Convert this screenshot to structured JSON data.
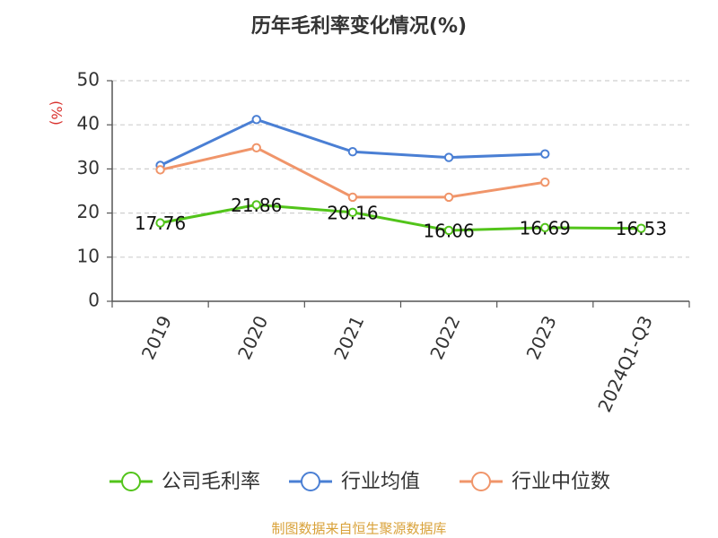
{
  "chart_data": {
    "type": "line",
    "title": "历年毛利率变化情况(%)",
    "ylabel": "(%)",
    "xlabel": "",
    "categories": [
      "2019",
      "2020",
      "2021",
      "2022",
      "2023",
      "2024Q1-Q3"
    ],
    "ylim": [
      0,
      50
    ],
    "yticks": [
      0,
      10,
      20,
      30,
      40,
      50
    ],
    "grid": true,
    "legend_position": "bottom",
    "series": [
      {
        "name": "公司毛利率",
        "color": "#52c41a",
        "values": [
          17.76,
          21.86,
          20.16,
          16.06,
          16.69,
          16.53
        ],
        "data_labels": [
          "17.76",
          "21.86",
          "20.16",
          "16.06",
          "16.69",
          "16.53"
        ]
      },
      {
        "name": "行业均值",
        "color": "#4a7fd4",
        "values": [
          30.8,
          41.2,
          33.9,
          32.6,
          33.4,
          null
        ]
      },
      {
        "name": "行业中位数",
        "color": "#f0956a",
        "values": [
          29.8,
          34.8,
          23.6,
          23.6,
          27.0,
          null
        ]
      }
    ],
    "source": "制图数据来自恒生聚源数据库"
  },
  "colors": {
    "title": "#333333",
    "ylabel": "#d9332f",
    "axis_text": "#333333",
    "gridline": "#cfcfcf",
    "axis_line": "#555555",
    "source_text": "#d9a23a"
  }
}
